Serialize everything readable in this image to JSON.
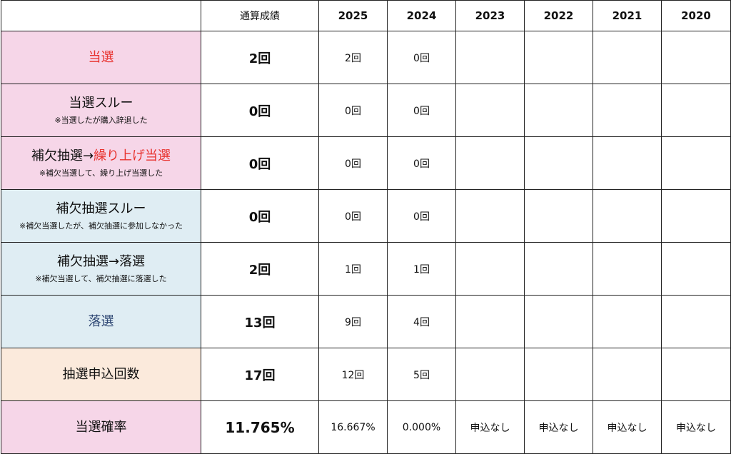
{
  "header": {
    "total": "通算成績",
    "years": [
      "2025",
      "2024",
      "2023",
      "2022",
      "2021",
      "2020"
    ]
  },
  "rows": [
    {
      "title": "当選",
      "total": "2回",
      "years": [
        "2回",
        "0回",
        "",
        "",
        "",
        ""
      ]
    },
    {
      "title": "当選スルー",
      "note": "※当選したが購入辞退した",
      "total": "0回",
      "years": [
        "0回",
        "0回",
        "",
        "",
        "",
        ""
      ]
    },
    {
      "title_prefix": "補欠抽選→",
      "title_highlight": "繰り上げ当選",
      "note": "※補欠当選して、繰り上げ当選した",
      "total": "0回",
      "years": [
        "0回",
        "0回",
        "",
        "",
        "",
        ""
      ]
    },
    {
      "title": "補欠抽選スルー",
      "note": "※補欠当選したが、補欠抽選に参加しなかった",
      "total": "0回",
      "years": [
        "0回",
        "0回",
        "",
        "",
        "",
        ""
      ]
    },
    {
      "title": "補欠抽選→落選",
      "note": "※補欠当選して、補欠抽選に落選した",
      "total": "2回",
      "years": [
        "1回",
        "1回",
        "",
        "",
        "",
        ""
      ]
    },
    {
      "title": "落選",
      "total": "13回",
      "years": [
        "9回",
        "4回",
        "",
        "",
        "",
        ""
      ]
    },
    {
      "title": "抽選申込回数",
      "total": "17回",
      "years": [
        "12回",
        "5回",
        "",
        "",
        "",
        ""
      ]
    },
    {
      "title": "当選確率",
      "total": "11.765%",
      "years": [
        "16.667%",
        "0.000%",
        "申込なし",
        "申込なし",
        "申込なし",
        "申込なし"
      ]
    }
  ],
  "colors": {
    "pink": "#f6d6e8",
    "blue": "#dfedf3",
    "peach": "#fbeadc",
    "red_text": "#e8322e",
    "navy_text": "#2c4572"
  }
}
